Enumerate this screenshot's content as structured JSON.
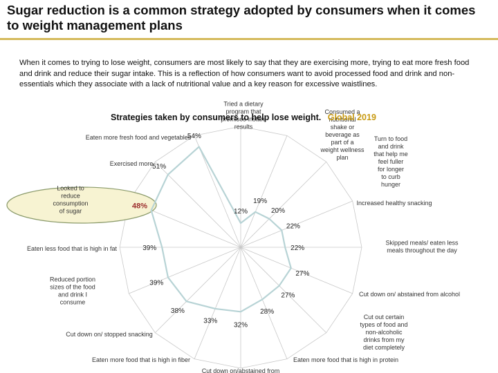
{
  "header": {
    "title": "Sugar reduction is a common strategy adopted by consumers when it comes to weight management plans",
    "intro": "When it comes to trying to lose weight, consumers are most likely to say that they are exercising more, trying to eat more fresh food and drink and reduce their sugar intake. This is a reflection of how consumers want to avoid processed food and drink and non-essentials which they associate with a lack of nutritional value and a key reason for excessive waistlines."
  },
  "chart_data": {
    "type": "radar",
    "title": "Strategies taken by consumers to help lose weight.",
    "title_accent": "Global 2019",
    "categories": [
      "Tried a dietary program that promises instant results",
      "Consumed a nutritional shake or beverage as part of a weight wellness plan",
      "Turn to food and drink that help me feel fuller for longer to curb hunger",
      "Increased healthy snacking",
      "Skipped meals/ eaten less meals throughout the day",
      "Cut down on/ abstained from alcohol",
      "Cut out certain types of food and non-alcoholic drinks from my diet completely",
      "Eaten more food that is high in protein",
      "Cut down on/abstained from",
      "Eaten more food that is high in fiber",
      "Cut down on/ stopped snacking",
      "Reduced portion sizes of the food and drink I consume",
      "Eaten less food that is high in fat",
      "Looked to reduce consumption of sugar",
      "Exercised more",
      "Eaten more fresh food and vegetables"
    ],
    "values": [
      12,
      19,
      20,
      22,
      22,
      27,
      27,
      28,
      32,
      33,
      38,
      39,
      39,
      48,
      51,
      54
    ],
    "value_labels": [
      "12%",
      "19%",
      "20%",
      "22%",
      "22%",
      "27%",
      "27%",
      "28%",
      "32%",
      "33%",
      "38%",
      "39%",
      "39%",
      "48%",
      "51%",
      "54%"
    ],
    "highlight_index": 13,
    "colors": {
      "series": "#b7d3d5",
      "grid": "#c8c8c8",
      "highlight_fill": "#f7f3d2",
      "highlight_stroke": "#8a9a6a",
      "highlight_text": "#9b2c2c",
      "accent": "#c89a12"
    }
  }
}
